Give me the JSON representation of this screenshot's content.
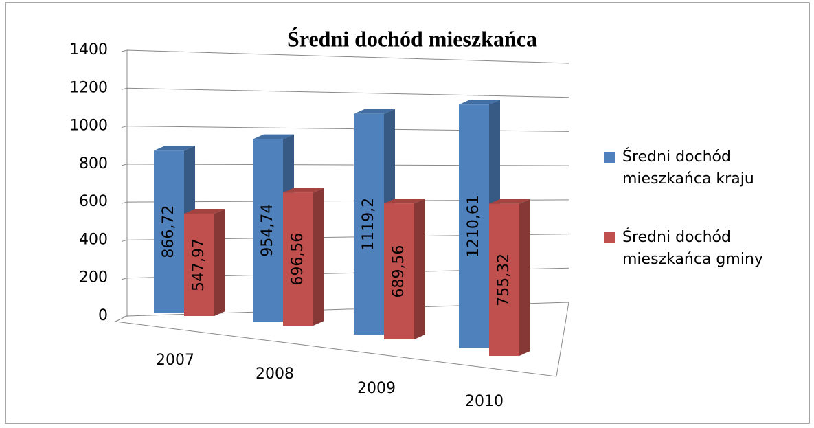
{
  "chart_data": {
    "type": "bar3d",
    "title": "Średni dochód  mieszkańca",
    "categories": [
      "2007",
      "2008",
      "2009",
      "2010"
    ],
    "series": [
      {
        "name": "Średni dochód mieszkańca kraju",
        "color": "#4f81bd",
        "values": [
          866.72,
          954.74,
          1119.2,
          1210.61
        ],
        "value_labels": [
          "866,72",
          "954,74",
          "1119,2",
          "1210,61"
        ]
      },
      {
        "name": "Średni dochód mieszkańca gminy",
        "color": "#c0504d",
        "values": [
          547.97,
          696.56,
          689.56,
          755.32
        ],
        "value_labels": [
          "547,97",
          "696,56",
          "689,56",
          "755,32"
        ]
      }
    ],
    "ylim": [
      0,
      1400
    ],
    "yticks": [
      0,
      200,
      400,
      600,
      800,
      1000,
      1200,
      1400
    ],
    "grid": true
  }
}
